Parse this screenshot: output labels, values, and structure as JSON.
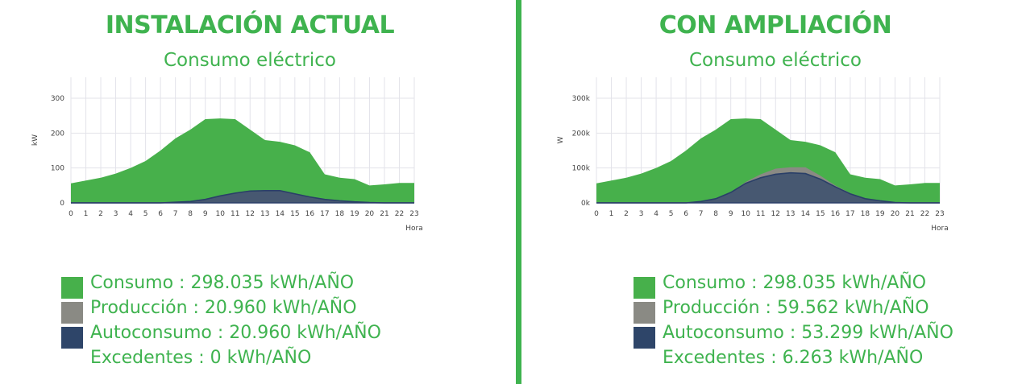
{
  "colors": {
    "consumo": "#47b04b",
    "produccion": "#8a8a84",
    "autoconsumo": "#2e4569",
    "accent": "#3fb34f",
    "grid": "#e3e3ea"
  },
  "panels": [
    {
      "heading": "INSTALACIÓN ACTUAL",
      "subheading": "Consumo eléctrico",
      "legend": [
        {
          "text": "Consumo : 298.035 kWh/AÑO",
          "swatch": "consumo"
        },
        {
          "text": "Producción : 20.960 kWh/AÑO",
          "swatch": "produccion"
        },
        {
          "text": "Autoconsumo : 20.960 kWh/AÑO",
          "swatch": "autoconsumo"
        },
        {
          "text": "Excedentes : 0 kWh/AÑO",
          "swatch": ""
        }
      ]
    },
    {
      "heading": "CON AMPLIACIÓN",
      "subheading": "Consumo eléctrico",
      "legend": [
        {
          "text": "Consumo : 298.035 kWh/AÑO",
          "swatch": "consumo"
        },
        {
          "text": "Producción : 59.562 kWh/AÑO",
          "swatch": "produccion"
        },
        {
          "text": "Autoconsumo : 53.299 kWh/AÑO",
          "swatch": "autoconsumo"
        },
        {
          "text": "Excedentes : 6.263 kWh/AÑO",
          "swatch": ""
        }
      ]
    }
  ],
  "chart_data": [
    {
      "type": "area",
      "ylabel": "kW",
      "xlabel": "Hora",
      "x": [
        0,
        1,
        2,
        3,
        4,
        5,
        6,
        7,
        8,
        9,
        10,
        11,
        12,
        13,
        14,
        15,
        16,
        17,
        18,
        19,
        20,
        21,
        22,
        23
      ],
      "xticks": [
        "0",
        "1",
        "2",
        "3",
        "4",
        "5",
        "6",
        "7",
        "8",
        "9",
        "10",
        "11",
        "12",
        "13",
        "14",
        "15",
        "16",
        "17",
        "18",
        "19",
        "20",
        "21",
        "22",
        "23"
      ],
      "yticks": [
        0,
        100,
        200,
        300
      ],
      "ytick_labels": [
        "0",
        "100",
        "200",
        "300"
      ],
      "ylim": [
        0,
        360
      ],
      "grid": true,
      "series": [
        {
          "key": "consumo",
          "values": [
            56,
            64,
            72,
            84,
            100,
            120,
            150,
            185,
            210,
            240,
            242,
            240,
            210,
            180,
            175,
            165,
            145,
            82,
            72,
            68,
            50,
            53,
            57,
            57
          ]
        },
        {
          "key": "produccion",
          "values": [
            0,
            0,
            0,
            0,
            0,
            0,
            0,
            2,
            4,
            10,
            20,
            28,
            34,
            35,
            35,
            26,
            17,
            10,
            6,
            3,
            1,
            0,
            0,
            0
          ]
        },
        {
          "key": "autoconsumo",
          "values": [
            0,
            0,
            0,
            0,
            0,
            0,
            0,
            2,
            4,
            10,
            20,
            28,
            34,
            35,
            35,
            26,
            17,
            10,
            6,
            3,
            1,
            0,
            0,
            0
          ]
        }
      ]
    },
    {
      "type": "area",
      "ylabel": "W",
      "xlabel": "Hora",
      "x": [
        0,
        1,
        2,
        3,
        4,
        5,
        6,
        7,
        8,
        9,
        10,
        11,
        12,
        13,
        14,
        15,
        16,
        17,
        18,
        19,
        20,
        21,
        22,
        23
      ],
      "xticks": [
        "0",
        "1",
        "2",
        "3",
        "4",
        "5",
        "6",
        "7",
        "8",
        "9",
        "10",
        "11",
        "12",
        "13",
        "14",
        "15",
        "16",
        "17",
        "18",
        "19",
        "20",
        "21",
        "22",
        "23"
      ],
      "yticks": [
        0,
        100000,
        200000,
        300000
      ],
      "ytick_labels": [
        "0k",
        "100k",
        "200k",
        "300k"
      ],
      "ylim": [
        0,
        360000
      ],
      "grid": true,
      "series": [
        {
          "key": "consumo",
          "values": [
            56000,
            64000,
            72000,
            84000,
            100000,
            120000,
            150000,
            185000,
            210000,
            240000,
            242000,
            240000,
            210000,
            180000,
            175000,
            165000,
            145000,
            82000,
            72000,
            68000,
            50000,
            53000,
            57000,
            57000
          ]
        },
        {
          "key": "produccion",
          "values": [
            0,
            0,
            0,
            0,
            0,
            0,
            0,
            4000,
            12000,
            30000,
            60000,
            82000,
            98000,
            102000,
            102000,
            78000,
            50000,
            28000,
            12000,
            6000,
            1000,
            0,
            0,
            0
          ]
        },
        {
          "key": "autoconsumo",
          "values": [
            0,
            0,
            0,
            0,
            0,
            0,
            0,
            4000,
            12000,
            30000,
            56000,
            72000,
            82000,
            86000,
            84000,
            68000,
            46000,
            26000,
            12000,
            6000,
            1000,
            0,
            0,
            0
          ]
        }
      ]
    }
  ]
}
